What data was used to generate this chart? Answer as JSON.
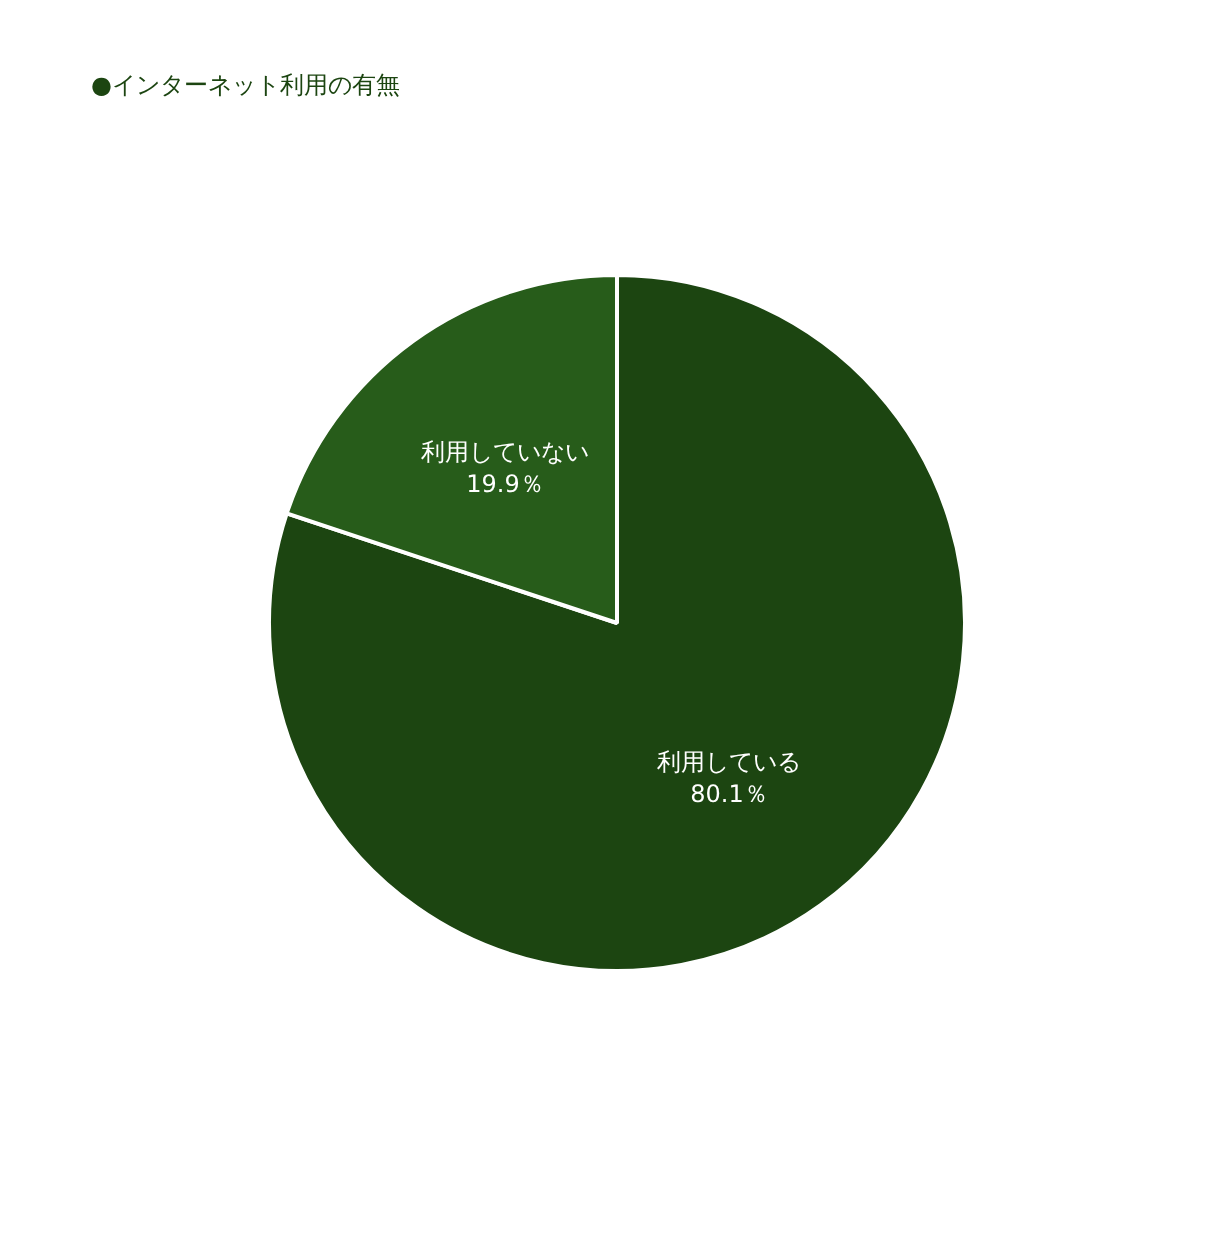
{
  "chart_data": {
    "type": "pie",
    "title": "●インターネット利用の有無",
    "categories": [
      "利用している",
      "利用していない"
    ],
    "values": [
      80.1,
      19.9
    ],
    "colors": [
      "#1c4511",
      "#275c1a"
    ],
    "value_labels": [
      "80.1％",
      "19.9％"
    ]
  }
}
